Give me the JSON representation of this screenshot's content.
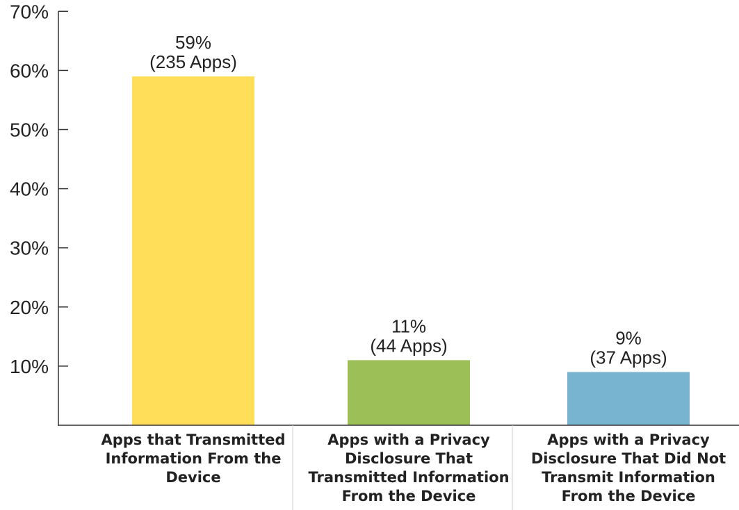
{
  "chart_data": {
    "type": "bar",
    "categories": [
      "Apps that Transmitted Information From the Device",
      "Apps with a Privacy Disclosure That Transmitted Information From the Device",
      "Apps with a Privacy Disclosure That Did Not Transmit Information From the Device"
    ],
    "category_label_lines": [
      [
        "Apps that Transmitted",
        "Information From the",
        "Device"
      ],
      [
        "Apps with a Privacy",
        "Disclosure That",
        "Transmitted Information",
        "From the Device"
      ],
      [
        "Apps with a Privacy",
        "Disclosure That Did Not",
        "Transmit Information",
        "From the Device"
      ]
    ],
    "values": [
      59,
      11,
      9
    ],
    "data_labels": [
      [
        "59%",
        "(235 Apps)"
      ],
      [
        "11%",
        "(44 Apps)"
      ],
      [
        "9%",
        "(37 Apps)"
      ]
    ],
    "colors": [
      "#ffde5a",
      "#9cbf57",
      "#78b3cf"
    ],
    "ylim": [
      0,
      70
    ],
    "yticks": [
      10,
      20,
      30,
      40,
      50,
      60,
      70
    ],
    "ytick_labels": [
      "10%",
      "20%",
      "30%",
      "40%",
      "50%",
      "60%",
      "70%"
    ],
    "grid": false,
    "title": "",
    "xlabel": "",
    "ylabel": ""
  }
}
